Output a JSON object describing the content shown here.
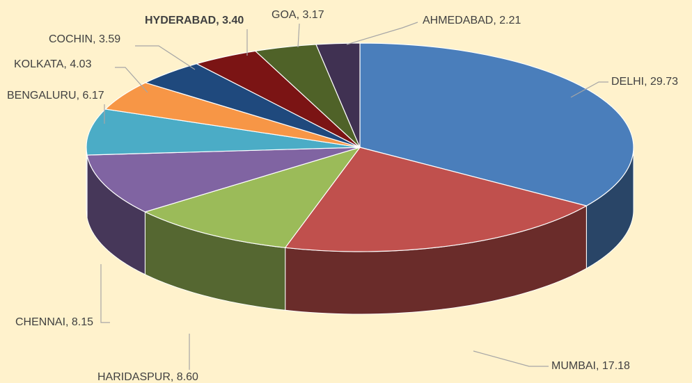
{
  "chart_data": {
    "type": "pie",
    "categories": [
      "DELHI",
      "MUMBAI",
      "HARIDASPUR",
      "CHENNAI",
      "BENGALURU",
      "KOLKATA",
      "COCHIN",
      "HYDERABAD",
      "GOA",
      "AHMEDABAD"
    ],
    "values": [
      29.73,
      17.18,
      8.6,
      8.15,
      6.17,
      4.03,
      3.59,
      3.4,
      3.17,
      2.21
    ],
    "value_labels": [
      "DELHI, 29.73",
      "MUMBAI, 17.18",
      "HARIDASPUR, 8.60",
      "CHENNAI, 8.15",
      "BENGALURU, 6.17",
      "KOLKATA, 4.03",
      "COCHIN, 3.59",
      "HYDERABAD, 3.40",
      "GOA, 3.17",
      "AHMEDABAD, 2.21"
    ],
    "colors": [
      "#4a7ebb",
      "#c0504d",
      "#9bbb59",
      "#8064a2",
      "#4bacc6",
      "#f79646",
      "#1f497d",
      "#7b1414",
      "#4f6228",
      "#403152"
    ]
  }
}
